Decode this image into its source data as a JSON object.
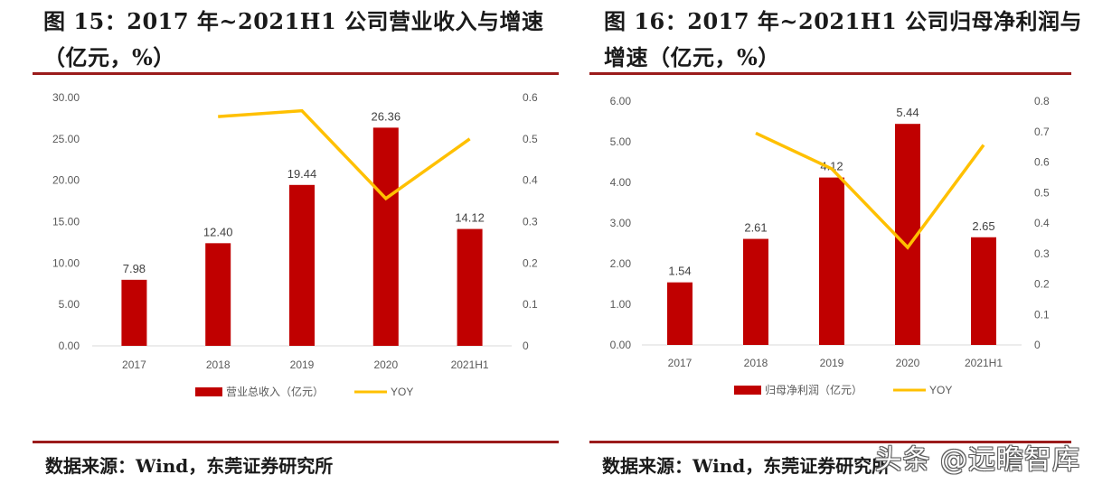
{
  "panels": [
    {
      "title": "图 15：2017 年~2021H1 公司营业收入与增速（亿元，%）",
      "source": "数据来源：Wind，东莞证券研究所"
    },
    {
      "title": "图 16：2017 年~2021H1 公司归母净利润与增速（亿元，%）",
      "source": "数据来源：Wind，东莞证券研究所"
    }
  ],
  "watermark": "头条 @远瞻智库",
  "colors": {
    "bar": "#c00000",
    "line": "#ffc000",
    "rule": "#9b1b1b",
    "axis": "#d9d9d9",
    "text": "#595959"
  },
  "chart_data": [
    {
      "type": "bar",
      "title": "图 15：2017 年~2021H1 公司营业收入与增速（亿元，%）",
      "categories": [
        "2017",
        "2018",
        "2019",
        "2020",
        "2021H1"
      ],
      "series": [
        {
          "name": "营业总收入（亿元）",
          "type": "bar",
          "axis": "left",
          "values": [
            7.98,
            12.4,
            19.44,
            26.36,
            14.12
          ],
          "labels": [
            "7.98",
            "12.40",
            "19.44",
            "26.36",
            "14.12"
          ]
        },
        {
          "name": "YOY",
          "type": "line",
          "axis": "right",
          "values": [
            null,
            0.554,
            0.568,
            0.356,
            0.5
          ]
        }
      ],
      "ylim_left": [
        0,
        30
      ],
      "yticks_left": [
        "0.00",
        "5.00",
        "10.00",
        "15.00",
        "20.00",
        "25.00",
        "30.00"
      ],
      "ylim_right": [
        0,
        0.6
      ],
      "yticks_right": [
        "0",
        "0.1",
        "0.2",
        "0.3",
        "0.4",
        "0.5",
        "0.6"
      ],
      "legend": "bottom"
    },
    {
      "type": "bar",
      "title": "图 16：2017 年~2021H1 公司归母净利润与增速（亿元，%）",
      "categories": [
        "2017",
        "2018",
        "2019",
        "2020",
        "2021H1"
      ],
      "series": [
        {
          "name": "归母净利润（亿元）",
          "type": "bar",
          "axis": "left",
          "values": [
            1.54,
            2.61,
            4.12,
            5.44,
            2.65
          ],
          "labels": [
            "1.54",
            "2.61",
            "4.12",
            "5.44",
            "2.65"
          ]
        },
        {
          "name": "YOY",
          "type": "line",
          "axis": "right",
          "values": [
            null,
            0.695,
            0.578,
            0.32,
            0.656
          ]
        }
      ],
      "ylim_left": [
        0,
        6
      ],
      "yticks_left": [
        "0.00",
        "1.00",
        "2.00",
        "3.00",
        "4.00",
        "5.00",
        "6.00"
      ],
      "ylim_right": [
        0,
        0.8
      ],
      "yticks_right": [
        "0",
        "0.1",
        "0.2",
        "0.3",
        "0.4",
        "0.5",
        "0.6",
        "0.7",
        "0.8"
      ],
      "legend": "bottom"
    }
  ]
}
